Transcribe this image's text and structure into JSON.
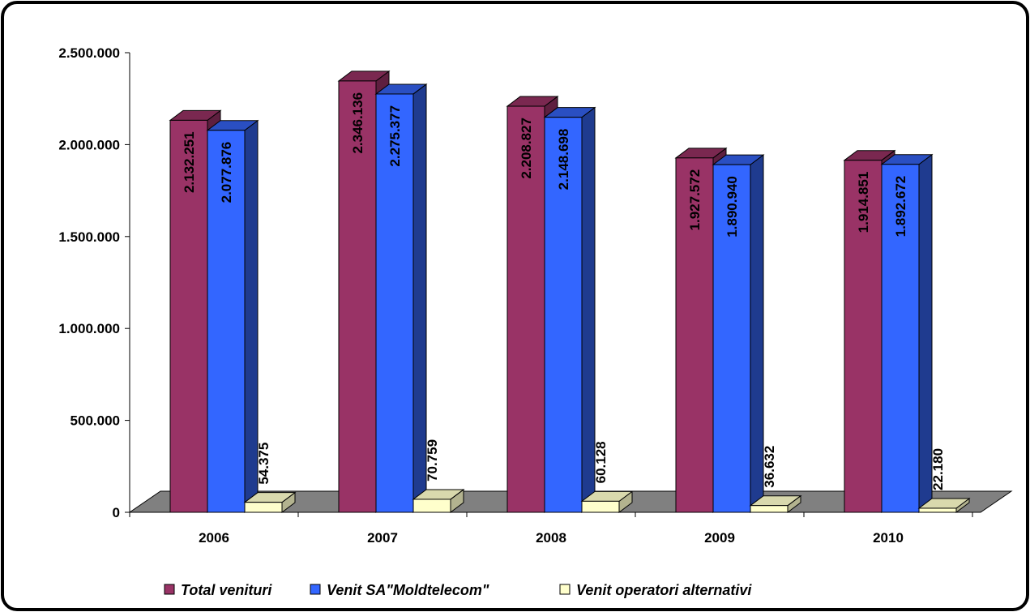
{
  "chart_data": {
    "type": "bar",
    "title": "",
    "xlabel": "",
    "ylabel": "",
    "categories": [
      "2006",
      "2007",
      "2008",
      "2009",
      "2010"
    ],
    "series": [
      {
        "name": "Total venituri",
        "values": [
          2132251,
          2346136,
          2208827,
          1927572,
          1914851
        ],
        "labels": [
          "2.132.251",
          "2.346.136",
          "2.208.827",
          "1.927.572",
          "1.914.851"
        ],
        "color": "#993366",
        "side_color": "#5e1f3f",
        "top_color": "#7a2850",
        "label_position": "inside"
      },
      {
        "name": "Venit SA\"Moldtelecom\"",
        "values": [
          2077876,
          2275377,
          2148698,
          1890940,
          1892672
        ],
        "labels": [
          "2.077.876",
          "2.275.377",
          "2.148.698",
          "1.890.940",
          "1.892.672"
        ],
        "color": "#3366ff",
        "side_color": "#1f3b8f",
        "top_color": "#2a4fc2",
        "label_position": "inside"
      },
      {
        "name": "Venit operatori alternativi",
        "values": [
          54375,
          70759,
          60128,
          36632,
          22180
        ],
        "labels": [
          "54.375",
          "70.759",
          "60.128",
          "36.632",
          "22.180"
        ],
        "color": "#ffffcc",
        "side_color": "#b3b38f",
        "top_color": "#d9d9ad",
        "label_position": "above"
      }
    ],
    "ylim": [
      0,
      2500000
    ],
    "yticks": [
      0,
      500000,
      1000000,
      1500000,
      2000000,
      2500000
    ],
    "ytick_labels": [
      "0",
      "500.000",
      "1.000.000",
      "1.500.000",
      "2.000.000",
      "2.500.000"
    ],
    "floor_color": "#808080",
    "grid": false,
    "legend_position": "bottom"
  }
}
